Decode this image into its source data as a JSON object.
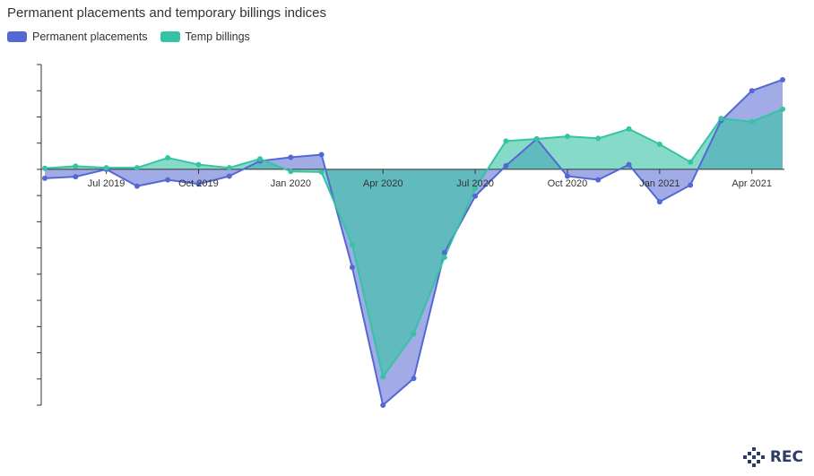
{
  "chart_data": {
    "type": "area",
    "title": "Permanent placements and temporary billings indices",
    "x": [
      "2019-05",
      "2019-06",
      "2019-07",
      "2019-08",
      "2019-09",
      "2019-10",
      "2019-11",
      "2019-12",
      "2020-01",
      "2020-02",
      "2020-03",
      "2020-04",
      "2020-05",
      "2020-06",
      "2020-07",
      "2020-08",
      "2020-09",
      "2020-10",
      "2020-11",
      "2020-12",
      "2021-01",
      "2021-02",
      "2021-03",
      "2021-04",
      "2021-05"
    ],
    "x_tick_labels": [
      "Jul 2019",
      "Oct 2019",
      "Jan 2020",
      "Apr 2020",
      "Jul 2020",
      "Oct 2020",
      "Jan 2021",
      "Apr 2021"
    ],
    "x_tick_positions": [
      "2019-07",
      "2019-10",
      "2020-01",
      "2020-04",
      "2020-07",
      "2020-10",
      "2021-01",
      "2021-04"
    ],
    "ylim": [
      -45,
      20
    ],
    "y_ticks": [
      -45,
      -40,
      -35,
      -30,
      -25,
      -20,
      -15,
      -10,
      -5,
      0,
      5,
      10,
      15,
      20
    ],
    "y_tick_labels_visible": false,
    "legend_position": "top-left",
    "series": [
      {
        "name": "Permanent placements",
        "color": "#5468d4",
        "fill": "rgba(84,104,212,0.55)",
        "values": [
          -1.7,
          -1.4,
          0.0,
          -3.2,
          -2.0,
          -2.8,
          -1.3,
          1.6,
          2.3,
          2.8,
          -18.7,
          -45.0,
          -39.9,
          -15.9,
          -5.1,
          0.7,
          5.8,
          -1.3,
          -2.0,
          0.9,
          -6.2,
          -3.0,
          9.3,
          15.0,
          17.1
        ]
      },
      {
        "name": "Temp billings",
        "color": "#35c3a4",
        "fill": "rgba(53,195,164,0.6)",
        "values": [
          0.2,
          0.6,
          0.3,
          0.3,
          2.2,
          0.9,
          0.3,
          2.0,
          -0.4,
          -0.5,
          -14.4,
          -39.6,
          -31.4,
          -16.8,
          -3.6,
          5.4,
          5.8,
          6.3,
          5.9,
          7.7,
          4.8,
          1.4,
          9.7,
          9.1,
          11.5
        ]
      }
    ]
  },
  "brand": {
    "logo_text": "REC"
  }
}
